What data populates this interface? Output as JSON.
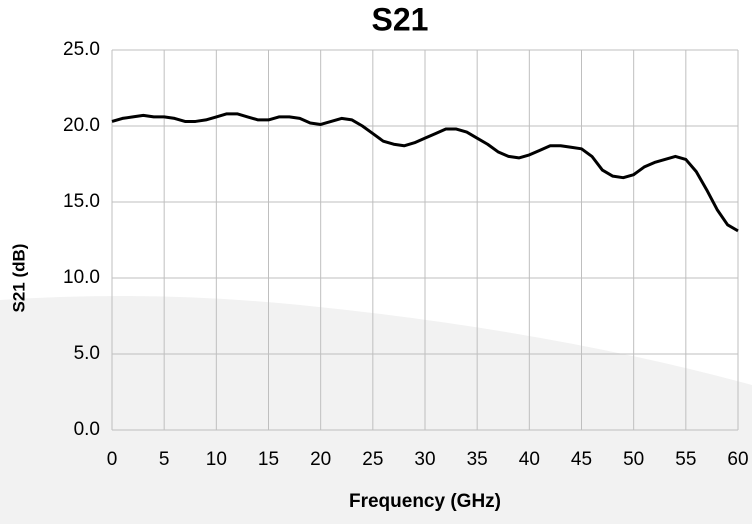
{
  "chart_data": {
    "type": "line",
    "title": "S21",
    "xlabel": "Frequency (GHz)",
    "ylabel": "S21 (dB)",
    "x": [
      0,
      1,
      2,
      3,
      4,
      5,
      6,
      7,
      8,
      9,
      10,
      11,
      12,
      13,
      14,
      15,
      16,
      17,
      18,
      19,
      20,
      21,
      22,
      23,
      24,
      25,
      26,
      27,
      28,
      29,
      30,
      31,
      32,
      33,
      34,
      35,
      36,
      37,
      38,
      39,
      40,
      41,
      42,
      43,
      44,
      45,
      46,
      47,
      48,
      49,
      50,
      51,
      52,
      53,
      54,
      55,
      56,
      57,
      58,
      59,
      60
    ],
    "series": [
      {
        "name": "S21",
        "color": "#000000",
        "values": [
          20.3,
          20.5,
          20.6,
          20.7,
          20.6,
          20.6,
          20.5,
          20.3,
          20.3,
          20.4,
          20.6,
          20.8,
          20.8,
          20.6,
          20.4,
          20.4,
          20.6,
          20.6,
          20.5,
          20.2,
          20.1,
          20.3,
          20.5,
          20.4,
          20.0,
          19.5,
          19.0,
          18.8,
          18.7,
          18.9,
          19.2,
          19.5,
          19.8,
          19.8,
          19.6,
          19.2,
          18.8,
          18.3,
          18.0,
          17.9,
          18.1,
          18.4,
          18.7,
          18.7,
          18.6,
          18.5,
          18.0,
          17.1,
          16.7,
          16.6,
          16.8,
          17.3,
          17.6,
          17.8,
          18.0,
          17.8,
          17.0,
          15.8,
          14.5,
          13.5,
          13.1
        ]
      }
    ],
    "xlim": [
      0,
      60
    ],
    "xticks": [
      0,
      5,
      10,
      15,
      20,
      25,
      30,
      35,
      40,
      45,
      50,
      55,
      60
    ],
    "ylim": [
      0,
      25
    ],
    "yticks": [
      {
        "value": 0,
        "label": "0.0"
      },
      {
        "value": 5,
        "label": "5.0"
      },
      {
        "value": 10,
        "label": "10.0"
      },
      {
        "value": 15,
        "label": "15.0"
      },
      {
        "value": 20,
        "label": "20.0"
      },
      {
        "value": 25,
        "label": "25.0"
      }
    ],
    "grid": true
  }
}
